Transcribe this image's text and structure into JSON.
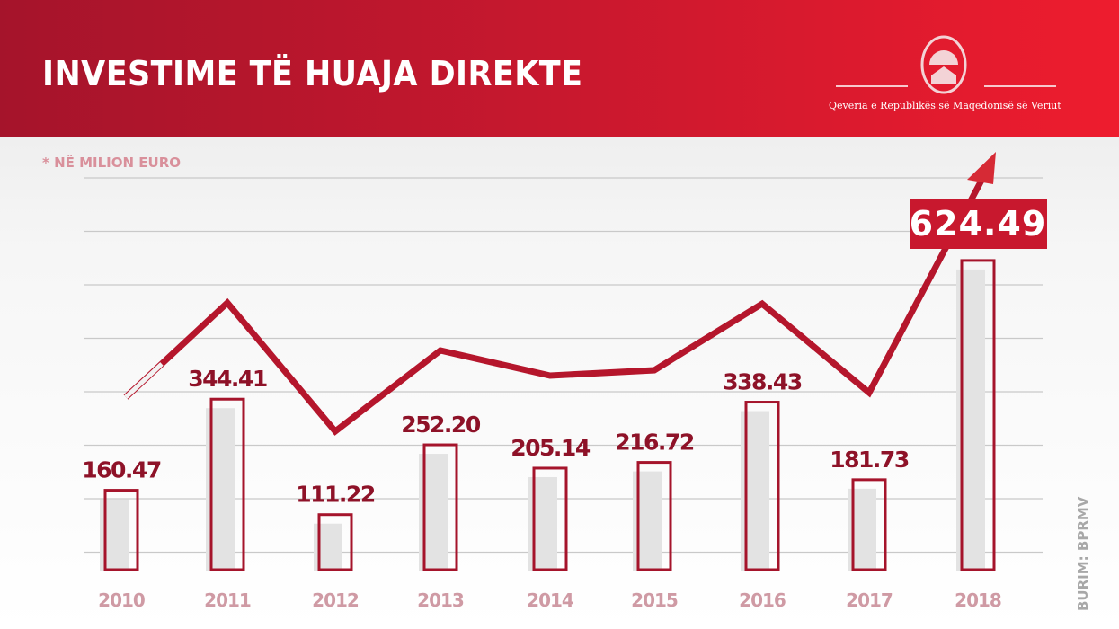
{
  "header": {
    "title": "INVESTIME TË HUAJA DIREKTE",
    "logo_caption": "Qeveria e Republikës së Maqedonisë së Veriut",
    "logo_icon": "coat-of-arms-emblem"
  },
  "subtitle": "* NË MILION EURO",
  "source": "BURIM: BPRMV",
  "colors": {
    "header_start": "#a5142b",
    "header_end": "#ee1c2e",
    "bar_outline": "#a5142b",
    "bar_fill": "#e3e3e3",
    "trend_line": "#b5162c",
    "highlight_box": "#c8182e"
  },
  "chart_data": {
    "type": "bar",
    "title": "INVESTIME TË HUAJA DIREKTE",
    "ylabel": "* NË MILION EURO",
    "categories": [
      "2010",
      "2011",
      "2012",
      "2013",
      "2014",
      "2015",
      "2016",
      "2017",
      "2018"
    ],
    "values": [
      160.47,
      344.41,
      111.22,
      252.2,
      205.14,
      216.72,
      338.43,
      181.73,
      624.49
    ],
    "value_labels": [
      "160.47",
      "344.41",
      "111.22",
      "252.20",
      "205.14",
      "216.72",
      "338.43",
      "181.73",
      "624.49"
    ],
    "highlight": "2018",
    "grid": true,
    "overlay": "decorative upward trend line with arrow ending above 2018"
  }
}
